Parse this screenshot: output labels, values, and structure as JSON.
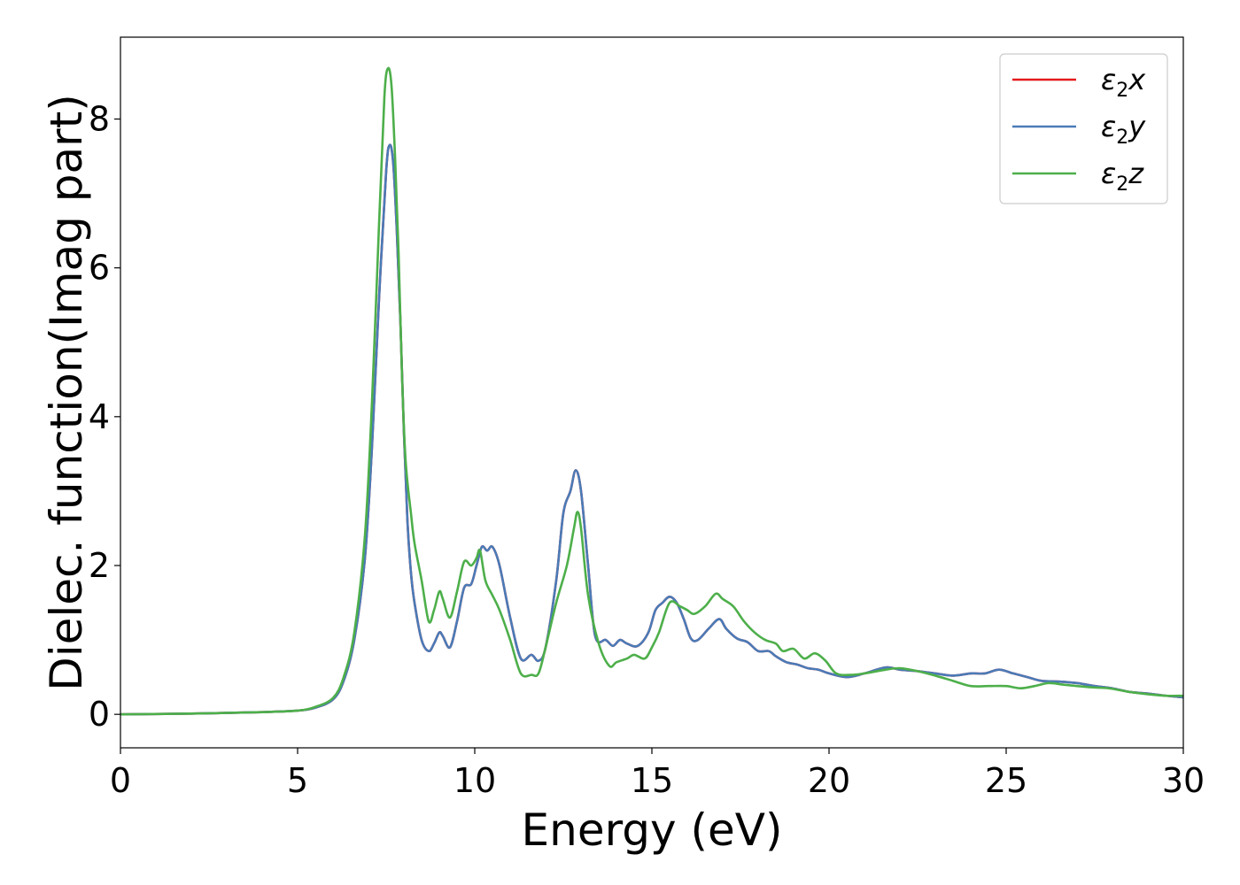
{
  "chart_data": {
    "type": "line",
    "xlabel": "Energy (eV)",
    "ylabel": "Dielec. function(Imag part)",
    "xlim": [
      0,
      30
    ],
    "ylim": [
      -0.45,
      9.1
    ],
    "xticks": [
      0,
      5,
      10,
      15,
      20,
      25,
      30
    ],
    "yticks": [
      0,
      2,
      4,
      6,
      8
    ],
    "xtick_labels": [
      "0",
      "5",
      "10",
      "15",
      "20",
      "25",
      "30"
    ],
    "ytick_labels": [
      "0",
      "2",
      "4",
      "6",
      "8"
    ],
    "grid": false,
    "legend_position": "top-right",
    "series": [
      {
        "name": "ε2x",
        "legend_main": "ε",
        "legend_sub": "2",
        "legend_var": "x",
        "color": "#e41a1c",
        "x": [
          0,
          2,
          4,
          5,
          5.5,
          6,
          6.3,
          6.6,
          6.9,
          7.1,
          7.3,
          7.5,
          7.6,
          7.7,
          7.8,
          7.9,
          8.0,
          8.1,
          8.2,
          8.3,
          8.5,
          8.7,
          8.85,
          9.0,
          9.1,
          9.3,
          9.5,
          9.7,
          9.9,
          10.05,
          10.2,
          10.35,
          10.5,
          10.7,
          11.0,
          11.3,
          11.6,
          11.8,
          12.0,
          12.3,
          12.5,
          12.7,
          12.85,
          13.0,
          13.2,
          13.4,
          13.7,
          13.9,
          14.1,
          14.3,
          14.6,
          14.9,
          15.1,
          15.3,
          15.5,
          15.7,
          15.9,
          16.1,
          16.3,
          16.6,
          16.9,
          17.1,
          17.4,
          17.7,
          18.0,
          18.3,
          18.5,
          18.8,
          19.1,
          19.4,
          19.7,
          20.0,
          20.5,
          21.0,
          21.6,
          22.0,
          22.5,
          23.0,
          23.5,
          24.0,
          24.4,
          24.8,
          25.2,
          25.6,
          26.0,
          26.5,
          27.0,
          27.5,
          28.0,
          28.5,
          29.0,
          29.5,
          30.0
        ],
        "y": [
          0.0,
          0.01,
          0.03,
          0.05,
          0.09,
          0.2,
          0.45,
          1.0,
          2.1,
          3.6,
          5.6,
          7.3,
          7.65,
          7.4,
          6.5,
          5.3,
          3.8,
          2.6,
          1.9,
          1.5,
          1.0,
          0.85,
          0.95,
          1.1,
          1.05,
          0.9,
          1.25,
          1.7,
          1.75,
          2.0,
          2.25,
          2.2,
          2.25,
          2.0,
          1.3,
          0.75,
          0.8,
          0.72,
          0.9,
          1.8,
          2.7,
          3.0,
          3.28,
          3.0,
          2.0,
          1.05,
          1.0,
          0.92,
          1.0,
          0.95,
          0.92,
          1.1,
          1.4,
          1.5,
          1.58,
          1.5,
          1.28,
          1.02,
          1.0,
          1.15,
          1.28,
          1.15,
          1.02,
          0.97,
          0.85,
          0.85,
          0.78,
          0.7,
          0.67,
          0.62,
          0.6,
          0.55,
          0.5,
          0.55,
          0.63,
          0.6,
          0.58,
          0.55,
          0.52,
          0.55,
          0.55,
          0.6,
          0.55,
          0.5,
          0.45,
          0.44,
          0.42,
          0.38,
          0.35,
          0.3,
          0.28,
          0.25,
          0.23
        ]
      },
      {
        "name": "ε2y",
        "legend_main": "ε",
        "legend_sub": "2",
        "legend_var": "y",
        "color": "#4a7bb7",
        "x": [
          0,
          2,
          4,
          5,
          5.5,
          6,
          6.3,
          6.6,
          6.9,
          7.1,
          7.3,
          7.5,
          7.6,
          7.7,
          7.8,
          7.9,
          8.0,
          8.1,
          8.2,
          8.3,
          8.5,
          8.7,
          8.85,
          9.0,
          9.1,
          9.3,
          9.5,
          9.7,
          9.9,
          10.05,
          10.2,
          10.35,
          10.5,
          10.7,
          11.0,
          11.3,
          11.6,
          11.8,
          12.0,
          12.3,
          12.5,
          12.7,
          12.85,
          13.0,
          13.2,
          13.4,
          13.7,
          13.9,
          14.1,
          14.3,
          14.6,
          14.9,
          15.1,
          15.3,
          15.5,
          15.7,
          15.9,
          16.1,
          16.3,
          16.6,
          16.9,
          17.1,
          17.4,
          17.7,
          18.0,
          18.3,
          18.5,
          18.8,
          19.1,
          19.4,
          19.7,
          20.0,
          20.5,
          21.0,
          21.6,
          22.0,
          22.5,
          23.0,
          23.5,
          24.0,
          24.4,
          24.8,
          25.2,
          25.6,
          26.0,
          26.5,
          27.0,
          27.5,
          28.0,
          28.5,
          29.0,
          29.5,
          30.0
        ],
        "y": [
          0.0,
          0.01,
          0.03,
          0.05,
          0.09,
          0.2,
          0.45,
          1.0,
          2.1,
          3.6,
          5.6,
          7.3,
          7.65,
          7.4,
          6.5,
          5.3,
          3.8,
          2.6,
          1.9,
          1.5,
          1.0,
          0.85,
          0.95,
          1.1,
          1.05,
          0.9,
          1.25,
          1.7,
          1.75,
          2.0,
          2.25,
          2.2,
          2.25,
          2.0,
          1.3,
          0.75,
          0.8,
          0.72,
          0.9,
          1.8,
          2.7,
          3.0,
          3.28,
          3.0,
          2.0,
          1.05,
          1.0,
          0.92,
          1.0,
          0.95,
          0.92,
          1.1,
          1.4,
          1.5,
          1.58,
          1.5,
          1.28,
          1.02,
          1.0,
          1.15,
          1.28,
          1.15,
          1.02,
          0.97,
          0.85,
          0.85,
          0.78,
          0.7,
          0.67,
          0.62,
          0.6,
          0.55,
          0.5,
          0.55,
          0.63,
          0.6,
          0.58,
          0.55,
          0.52,
          0.55,
          0.55,
          0.6,
          0.55,
          0.5,
          0.45,
          0.44,
          0.42,
          0.38,
          0.35,
          0.3,
          0.28,
          0.25,
          0.23
        ]
      },
      {
        "name": "ε2z",
        "legend_main": "ε",
        "legend_sub": "2",
        "legend_var": "z",
        "color": "#4daf4a",
        "x": [
          0,
          2,
          4,
          5,
          5.5,
          6,
          6.3,
          6.6,
          6.9,
          7.1,
          7.3,
          7.45,
          7.55,
          7.65,
          7.75,
          7.85,
          7.95,
          8.05,
          8.2,
          8.3,
          8.5,
          8.7,
          8.85,
          9.0,
          9.1,
          9.3,
          9.5,
          9.7,
          9.9,
          10.05,
          10.15,
          10.3,
          10.5,
          10.7,
          11.0,
          11.3,
          11.6,
          11.8,
          12.0,
          12.3,
          12.6,
          12.8,
          12.9,
          13.0,
          13.2,
          13.5,
          13.8,
          14.0,
          14.3,
          14.5,
          14.8,
          15.0,
          15.2,
          15.5,
          15.8,
          16.0,
          16.2,
          16.5,
          16.8,
          17.0,
          17.3,
          17.6,
          17.9,
          18.2,
          18.5,
          18.7,
          19.0,
          19.3,
          19.6,
          19.9,
          20.2,
          20.6,
          21.0,
          21.6,
          22.0,
          22.5,
          23.0,
          23.5,
          24.0,
          24.5,
          25.0,
          25.4,
          25.8,
          26.2,
          26.6,
          27.0,
          27.5,
          27.9,
          28.5,
          29.0,
          29.5,
          30.0
        ],
        "y": [
          0.0,
          0.01,
          0.03,
          0.05,
          0.1,
          0.22,
          0.5,
          1.1,
          2.4,
          4.2,
          6.6,
          8.3,
          8.68,
          8.45,
          7.5,
          6.2,
          4.5,
          3.4,
          2.7,
          2.3,
          1.8,
          1.25,
          1.4,
          1.65,
          1.55,
          1.3,
          1.65,
          2.05,
          2.0,
          2.1,
          2.2,
          1.8,
          1.6,
          1.4,
          1.0,
          0.55,
          0.53,
          0.55,
          0.9,
          1.5,
          2.0,
          2.5,
          2.72,
          2.5,
          1.6,
          0.95,
          0.65,
          0.7,
          0.75,
          0.8,
          0.75,
          0.9,
          1.1,
          1.5,
          1.45,
          1.4,
          1.35,
          1.45,
          1.62,
          1.55,
          1.45,
          1.25,
          1.1,
          1.0,
          0.95,
          0.85,
          0.88,
          0.75,
          0.82,
          0.72,
          0.55,
          0.53,
          0.55,
          0.6,
          0.62,
          0.58,
          0.52,
          0.45,
          0.38,
          0.38,
          0.38,
          0.35,
          0.38,
          0.42,
          0.4,
          0.38,
          0.36,
          0.35,
          0.3,
          0.27,
          0.25,
          0.25
        ]
      }
    ]
  }
}
